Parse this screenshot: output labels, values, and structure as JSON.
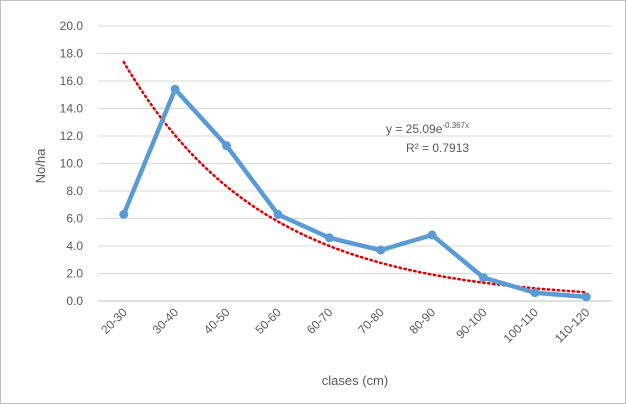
{
  "chart_data": {
    "type": "line",
    "categories": [
      "20-30",
      "30-40",
      "40-50",
      "50-60",
      "60-70",
      "70-80",
      "80-90",
      "90-100",
      "100-110",
      "110-120"
    ],
    "series": [
      {
        "values": [
          6.3,
          15.4,
          11.3,
          6.3,
          4.6,
          3.7,
          4.8,
          1.7,
          0.6,
          0.3
        ],
        "color": "#5b9bd5",
        "marker": "circle"
      }
    ],
    "trendline": {
      "type": "exponential",
      "a": 25.09,
      "b": -0.367,
      "color": "#e00000",
      "style": "dotted"
    },
    "annotation": {
      "equation_base": "y = 25.09e",
      "equation_exponent": "-0.367x",
      "r_squared": "R² = 0.7913"
    },
    "xlabel": "clases (cm)",
    "ylabel": "No/ha",
    "ylim": [
      0,
      20
    ],
    "yticks": [
      "0.0",
      "2.0",
      "4.0",
      "6.0",
      "8.0",
      "10.0",
      "12.0",
      "14.0",
      "16.0",
      "18.0",
      "20.0"
    ],
    "grid": "horizontal",
    "legend": "none"
  }
}
